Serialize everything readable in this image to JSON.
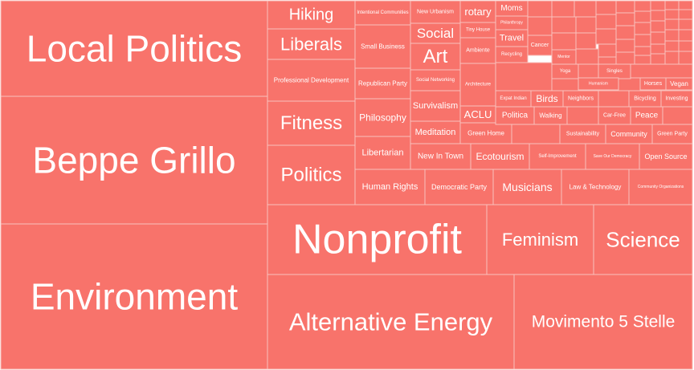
{
  "chart_data": {
    "type": "treemap",
    "title": "",
    "fill_color": "#f8736b",
    "border_color": "#f9c1bc",
    "text_color": "#ffffff",
    "note": "Tile sizes are relative areas estimated from the rendered treemap; tiny unlabeled tiles in the top-right corner are omitted.",
    "items": [
      {
        "label": "Local Politics",
        "value": 52800
      },
      {
        "label": "Beppe Grillo",
        "value": 53000
      },
      {
        "label": "Environment",
        "value": 60300
      },
      {
        "label": "Nonprofit",
        "value": 24300
      },
      {
        "label": "Alternative Energy",
        "value": 35100
      },
      {
        "label": "Movimento 5 Stelle",
        "value": 26700
      },
      {
        "label": "Feminism",
        "value": 12000
      },
      {
        "label": "Science",
        "value": 11600
      },
      {
        "label": "Hiking",
        "value": 3300
      },
      {
        "label": "Liberals",
        "value": 4100
      },
      {
        "label": "Professional Development",
        "value": 5000
      },
      {
        "label": "Fitness",
        "value": 5900
      },
      {
        "label": "Politics",
        "value": 7900
      },
      {
        "label": "Intentional Communities",
        "value": 1700
      },
      {
        "label": "Small Business",
        "value": 2300
      },
      {
        "label": "Republican Party",
        "value": 2600
      },
      {
        "label": "Philosophy",
        "value": 3200
      },
      {
        "label": "Libertarian",
        "value": 2800
      },
      {
        "label": "Human Rights",
        "value": 3100
      },
      {
        "label": "New Urbanism",
        "value": 1400
      },
      {
        "label": "Social",
        "value": 1500
      },
      {
        "label": "Art",
        "value": 1600
      },
      {
        "label": "Social Networking",
        "value": 1600
      },
      {
        "label": "Survivalism",
        "value": 1600
      },
      {
        "label": "Meditation",
        "value": 1500
      },
      {
        "label": "New In Town",
        "value": 2000
      },
      {
        "label": "Democratic Party",
        "value": 2400
      },
      {
        "label": "rotary",
        "value": 1100
      },
      {
        "label": "Tiny House",
        "value": 500
      },
      {
        "label": "Ambiente",
        "value": 1100
      },
      {
        "label": "Architecture",
        "value": 1400
      },
      {
        "label": "ACLU",
        "value": 1000
      },
      {
        "label": "Green Home",
        "value": 1100
      },
      {
        "label": "Ecotourism",
        "value": 1500
      },
      {
        "label": "Musicians",
        "value": 2400
      },
      {
        "label": "Moms",
        "value": 700
      },
      {
        "label": "Philanthropy",
        "value": 300
      },
      {
        "label": "Travel",
        "value": 700
      },
      {
        "label": "Recycling",
        "value": 700
      },
      {
        "label": "Cancer",
        "value": 800
      },
      {
        "label": "Mentor",
        "value": 300
      },
      {
        "label": "Yoga",
        "value": 400
      },
      {
        "label": "Singles",
        "value": 400
      },
      {
        "label": "Humanism",
        "value": 400
      },
      {
        "label": "Horses",
        "value": 400
      },
      {
        "label": "Vegan",
        "value": 400
      },
      {
        "label": "Expat Indian",
        "value": 600
      },
      {
        "label": "Birds",
        "value": 700
      },
      {
        "label": "Neighbors",
        "value": 600
      },
      {
        "label": "Bicycling",
        "value": 600
      },
      {
        "label": "Investing",
        "value": 500
      },
      {
        "label": "Politica",
        "value": 700
      },
      {
        "label": "Walking",
        "value": 600
      },
      {
        "label": "Car-Free",
        "value": 600
      },
      {
        "label": "Peace",
        "value": 600
      },
      {
        "label": "Sustainability",
        "value": 1000
      },
      {
        "label": "Community",
        "value": 900
      },
      {
        "label": "Green Party",
        "value": 800
      },
      {
        "label": "Self-Improvement",
        "value": 1000
      },
      {
        "label": "Save Our Democracy",
        "value": 1000
      },
      {
        "label": "Open Source",
        "value": 1000
      },
      {
        "label": "Law & Technology",
        "value": 1300
      },
      {
        "label": "Community Organizations",
        "value": 1300
      }
    ]
  }
}
